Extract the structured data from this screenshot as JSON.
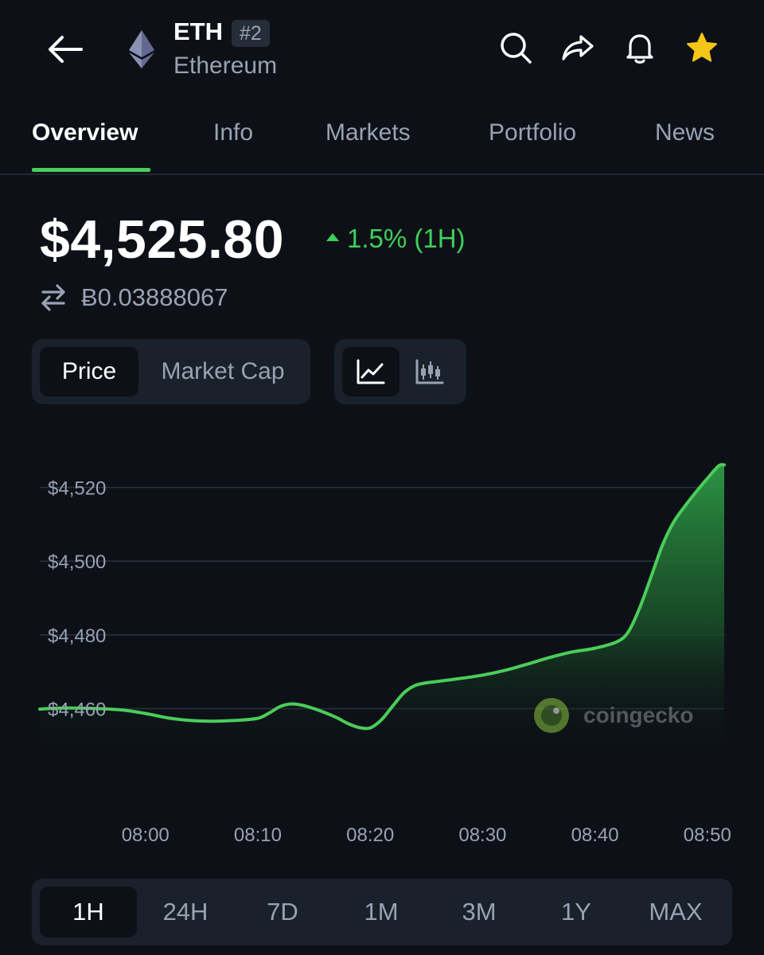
{
  "header": {
    "symbol": "ETH",
    "rank": "#2",
    "name": "Ethereum",
    "icons": [
      "back-arrow-icon",
      "ethereum-logo-icon",
      "search-icon",
      "share-icon",
      "bell-icon",
      "star-icon"
    ]
  },
  "tabs": [
    {
      "label": "Overview",
      "active": true
    },
    {
      "label": "Info",
      "active": false
    },
    {
      "label": "Markets",
      "active": false
    },
    {
      "label": "Portfolio",
      "active": false
    },
    {
      "label": "News",
      "active": false
    }
  ],
  "price": {
    "usd": "$4,525.80",
    "change": "1.5% (1H)",
    "btc": "Ƀ0.03888067"
  },
  "toggles": {
    "price_label": "Price",
    "market_cap_label": "Market Cap",
    "selected": "Price",
    "chart_type_selected": "line"
  },
  "watermark": "coingecko",
  "colors": {
    "accent": "#4bcc5a",
    "positive": "#3fcf5a",
    "background": "#0d1117",
    "panel": "#1a212b",
    "muted": "#98a2b3"
  },
  "chart_data": {
    "type": "area",
    "ylim": [
      4445,
      4527
    ],
    "y_ticks": [
      {
        "value": 4520,
        "label": "$4,520"
      },
      {
        "value": 4500,
        "label": "$4,500"
      },
      {
        "value": 4480,
        "label": "$4,480"
      },
      {
        "value": 4460,
        "label": "$4,460"
      }
    ],
    "x_ticks": [
      {
        "value": 0,
        "label": "08:00"
      },
      {
        "value": 10,
        "label": "08:10"
      },
      {
        "value": 20,
        "label": "08:20"
      },
      {
        "value": 30,
        "label": "08:30"
      },
      {
        "value": 40,
        "label": "08:40"
      },
      {
        "value": 50,
        "label": "08:50"
      }
    ],
    "xlim": [
      -9.4,
      51.5
    ],
    "grid": true,
    "series": [
      {
        "x": [
          -9.4,
          -7,
          -4,
          -2,
          0,
          2,
          4,
          6,
          8,
          10,
          11,
          12,
          13,
          14,
          15,
          16,
          17,
          18,
          19,
          20,
          21,
          22,
          23,
          24,
          25,
          26,
          28,
          30,
          32,
          34,
          36,
          38,
          40,
          42,
          43,
          44,
          45,
          46,
          47,
          48,
          49,
          50,
          51,
          51.5
        ],
        "y": [
          4459.9,
          4460.2,
          4460.0,
          4459.6,
          4458.7,
          4457.5,
          4456.8,
          4456.6,
          4456.8,
          4457.4,
          4458.8,
          4460.6,
          4461.3,
          4460.9,
          4460.0,
          4458.9,
          4457.6,
          4456.0,
          4454.9,
          4454.8,
          4457.0,
          4460.7,
          4464.3,
          4466.3,
          4467.0,
          4467.4,
          4468.2,
          4469.1,
          4470.4,
          4472.1,
          4473.9,
          4475.4,
          4476.4,
          4478.2,
          4481.0,
          4487.5,
          4495.8,
          4504.3,
          4510.6,
          4514.9,
          4518.8,
          4522.4,
          4525.8,
          4526.1
        ]
      }
    ]
  },
  "ranges": [
    {
      "label": "1H",
      "active": true
    },
    {
      "label": "24H",
      "active": false
    },
    {
      "label": "7D",
      "active": false
    },
    {
      "label": "1M",
      "active": false
    },
    {
      "label": "3M",
      "active": false
    },
    {
      "label": "1Y",
      "active": false
    },
    {
      "label": "MAX",
      "active": false
    }
  ]
}
